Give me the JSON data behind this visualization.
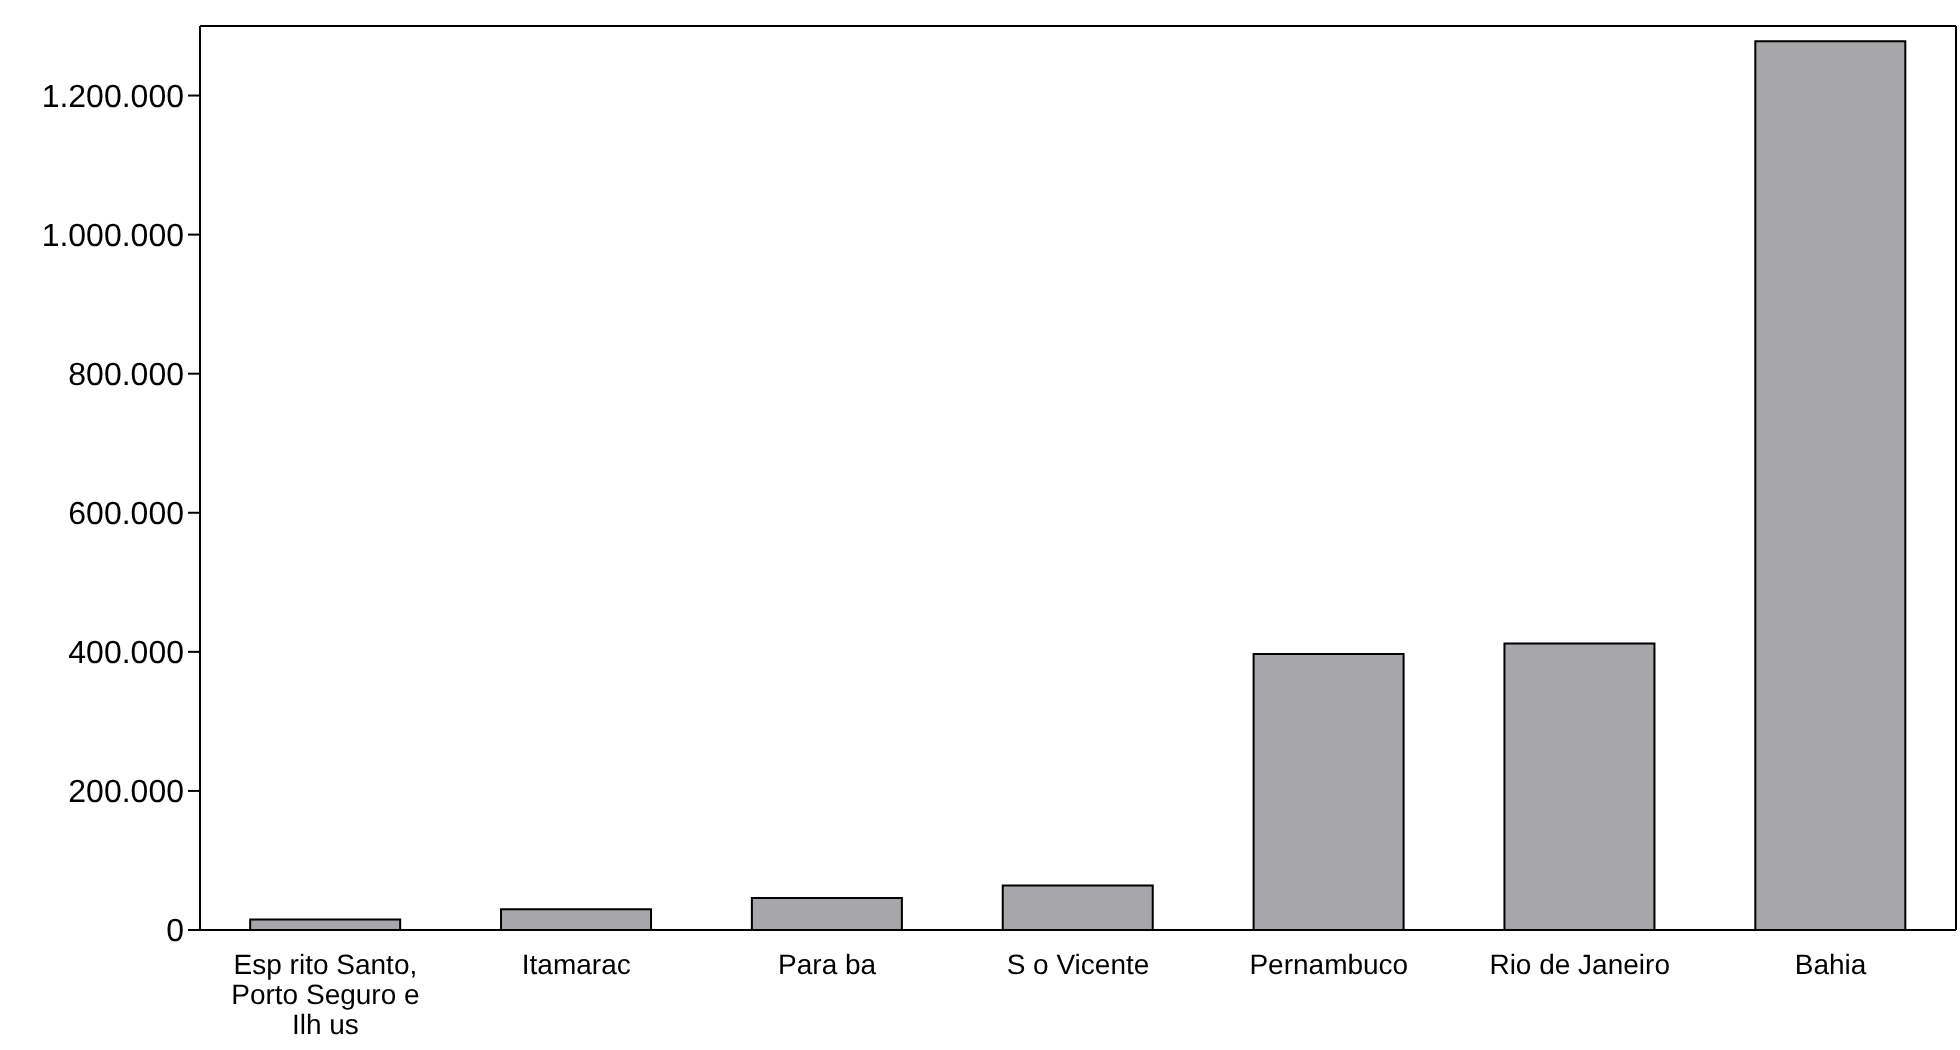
{
  "chart_data": {
    "type": "bar",
    "categories": [
      "Esp rito Santo, Porto Seguro e Ilh us",
      "Itamarac",
      "Para ba",
      "S o Vicente",
      "Pernambuco",
      "Rio de Janeiro",
      "Bahia"
    ],
    "values": [
      15000,
      30000,
      46000,
      64000,
      397000,
      412000,
      1278000
    ],
    "color": "#a7a7ab",
    "ylim": [
      0,
      1300000
    ],
    "yticks": [
      0,
      {
        "value": 200000,
        "label": "200.000"
      },
      {
        "value": 400000,
        "label": "400.000"
      },
      {
        "value": 600000,
        "label": "600.000"
      },
      {
        "value": 800000,
        "label": "800.000"
      },
      {
        "value": 1000000,
        "label": "1.000.000"
      },
      {
        "value": 1200000,
        "label": "1.200.000"
      }
    ]
  }
}
